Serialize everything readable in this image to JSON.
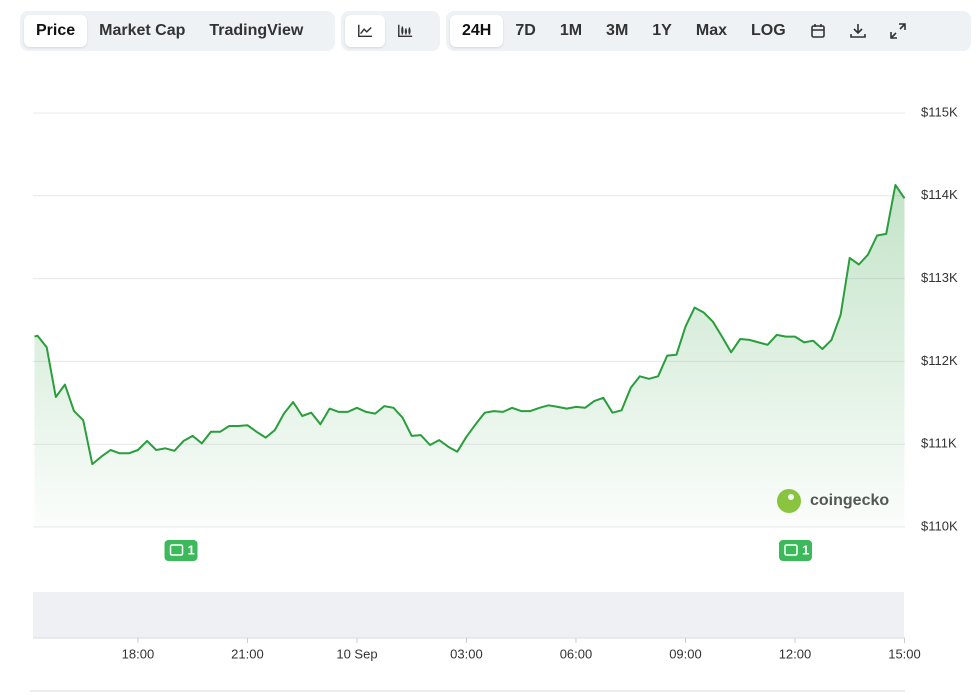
{
  "toolbar": {
    "views": [
      "Price",
      "Market Cap",
      "TradingView"
    ],
    "ranges": [
      "24H",
      "7D",
      "1M",
      "3M",
      "1Y",
      "Max",
      "LOG"
    ]
  },
  "watermark": "coingecko",
  "news_markers": [
    {
      "label": "1",
      "x": "9 Sep 19:10"
    },
    {
      "label": "1",
      "x": "10 Sep 12:00"
    }
  ],
  "chart_data": {
    "type": "line",
    "color": "#2a9d3c",
    "x": [
      "9 Sep 15:10",
      "9 Sep 15:15",
      "9 Sep 15:30",
      "9 Sep 15:45",
      "9 Sep 16:00",
      "9 Sep 16:15",
      "9 Sep 16:30",
      "9 Sep 16:45",
      "9 Sep 17:00",
      "9 Sep 17:15",
      "9 Sep 17:30",
      "9 Sep 17:45",
      "9 Sep 18:00",
      "9 Sep 18:15",
      "9 Sep 18:30",
      "9 Sep 18:45",
      "9 Sep 19:00",
      "9 Sep 19:15",
      "9 Sep 19:30",
      "9 Sep 19:45",
      "9 Sep 20:00",
      "9 Sep 20:15",
      "9 Sep 20:30",
      "9 Sep 20:45",
      "9 Sep 21:00",
      "9 Sep 21:15",
      "9 Sep 21:30",
      "9 Sep 21:45",
      "9 Sep 22:00",
      "9 Sep 22:15",
      "9 Sep 22:30",
      "9 Sep 22:45",
      "9 Sep 23:00",
      "9 Sep 23:15",
      "9 Sep 23:30",
      "9 Sep 23:45",
      "10 Sep 00:00",
      "10 Sep 00:15",
      "10 Sep 00:30",
      "10 Sep 00:45",
      "10 Sep 01:00",
      "10 Sep 01:15",
      "10 Sep 01:30",
      "10 Sep 01:45",
      "10 Sep 02:00",
      "10 Sep 02:15",
      "10 Sep 02:30",
      "10 Sep 02:45",
      "10 Sep 03:00",
      "10 Sep 03:15",
      "10 Sep 03:30",
      "10 Sep 03:45",
      "10 Sep 04:00",
      "10 Sep 04:15",
      "10 Sep 04:30",
      "10 Sep 04:45",
      "10 Sep 05:00",
      "10 Sep 05:15",
      "10 Sep 05:30",
      "10 Sep 05:45",
      "10 Sep 06:00",
      "10 Sep 06:15",
      "10 Sep 06:30",
      "10 Sep 06:45",
      "10 Sep 07:00",
      "10 Sep 07:15",
      "10 Sep 07:30",
      "10 Sep 07:45",
      "10 Sep 08:00",
      "10 Sep 08:15",
      "10 Sep 08:30",
      "10 Sep 08:45",
      "10 Sep 09:00",
      "10 Sep 09:15",
      "10 Sep 09:30",
      "10 Sep 09:45",
      "10 Sep 10:00",
      "10 Sep 10:15",
      "10 Sep 10:30",
      "10 Sep 10:45",
      "10 Sep 11:00",
      "10 Sep 11:15",
      "10 Sep 11:30",
      "10 Sep 11:45",
      "10 Sep 12:00",
      "10 Sep 12:15",
      "10 Sep 12:30",
      "10 Sep 12:45",
      "10 Sep 13:00",
      "10 Sep 13:15",
      "10 Sep 13:30",
      "10 Sep 13:45",
      "10 Sep 14:00",
      "10 Sep 14:15",
      "10 Sep 14:30",
      "10 Sep 14:45",
      "10 Sep 15:00"
    ],
    "values": [
      112300,
      112310,
      112170,
      111570,
      111720,
      111400,
      111290,
      110760,
      110850,
      110930,
      110890,
      110890,
      110930,
      111040,
      110930,
      110950,
      110920,
      111040,
      111100,
      111010,
      111150,
      111150,
      111220,
      111220,
      111230,
      111150,
      111080,
      111170,
      111370,
      111510,
      111340,
      111380,
      111240,
      111430,
      111390,
      111390,
      111440,
      111390,
      111370,
      111460,
      111440,
      111320,
      111100,
      111110,
      110990,
      111050,
      110970,
      110910,
      111090,
      111240,
      111380,
      111400,
      111390,
      111440,
      111400,
      111400,
      111440,
      111470,
      111450,
      111430,
      111450,
      111440,
      111520,
      111560,
      111380,
      111410,
      111680,
      111820,
      111790,
      111820,
      112070,
      112080,
      112420,
      112650,
      112590,
      112480,
      112300,
      112110,
      112270,
      112260,
      112230,
      112200,
      112320,
      112300,
      112300,
      112230,
      112250,
      112150,
      112260,
      112560,
      113250,
      113170,
      113290,
      113520,
      113540,
      114130,
      113970
    ],
    "xlim": [
      "9 Sep 15:10",
      "10 Sep 15:00"
    ],
    "xticks": [
      {
        "value": "9 Sep 18:00",
        "label": "18:00"
      },
      {
        "value": "9 Sep 21:00",
        "label": "21:00"
      },
      {
        "value": "10 Sep 00:00",
        "label": "10 Sep"
      },
      {
        "value": "10 Sep 03:00",
        "label": "03:00"
      },
      {
        "value": "10 Sep 06:00",
        "label": "06:00"
      },
      {
        "value": "10 Sep 09:00",
        "label": "09:00"
      },
      {
        "value": "10 Sep 12:00",
        "label": "12:00"
      },
      {
        "value": "10 Sep 15:00",
        "label": "15:00"
      }
    ],
    "ylim": [
      110000,
      115000
    ],
    "yticks": [
      {
        "value": 110000,
        "label": "$110K"
      },
      {
        "value": 111000,
        "label": "$111K"
      },
      {
        "value": 112000,
        "label": "$112K"
      },
      {
        "value": 113000,
        "label": "$113K"
      },
      {
        "value": 114000,
        "label": "$114K"
      },
      {
        "value": 115000,
        "label": "$115K"
      }
    ],
    "grid": true
  }
}
